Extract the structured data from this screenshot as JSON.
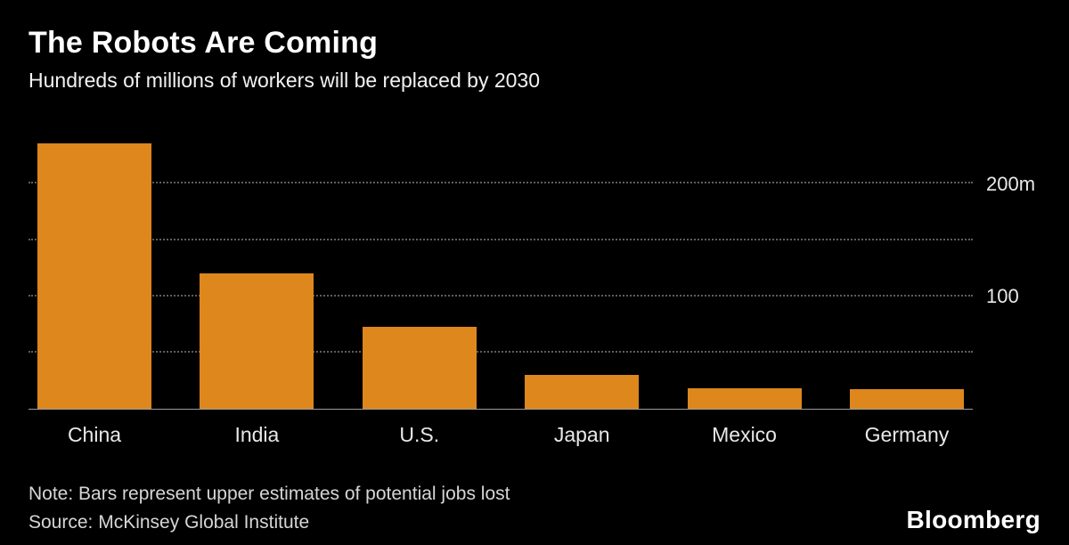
{
  "header": {
    "title": "The Robots Are Coming",
    "subtitle": "Hundreds of millions of workers will be replaced by 2030"
  },
  "chart_data": {
    "type": "bar",
    "title": "The Robots Are Coming",
    "subtitle": "Hundreds of millions of workers will be replaced by 2030",
    "categories": [
      "China",
      "India",
      "U.S.",
      "Japan",
      "Mexico",
      "Germany"
    ],
    "values": [
      236,
      120,
      73,
      30,
      18,
      17
    ],
    "unit": "millions of workers",
    "xlabel": "",
    "ylabel": "",
    "ylim": [
      0,
      245
    ],
    "gridlines": [
      50,
      100,
      150,
      200
    ],
    "y_axis_labels": [
      {
        "value": 200,
        "label": "200m"
      },
      {
        "value": 100,
        "label": "100"
      }
    ],
    "grid": "horizontal dotted",
    "legend": "none",
    "bar_color": "#dd871d"
  },
  "footer": {
    "note": "Note: Bars represent upper estimates of potential jobs lost",
    "source": "Source: McKinsey Global Institute",
    "brand": "Bloomberg"
  },
  "colors": {
    "background": "#000000",
    "bar": "#dd871d",
    "text_primary": "#ffffff",
    "text_secondary": "#e8e8e8",
    "gridline": "#5e5e5e",
    "axis_line": "#9c9c9c"
  }
}
